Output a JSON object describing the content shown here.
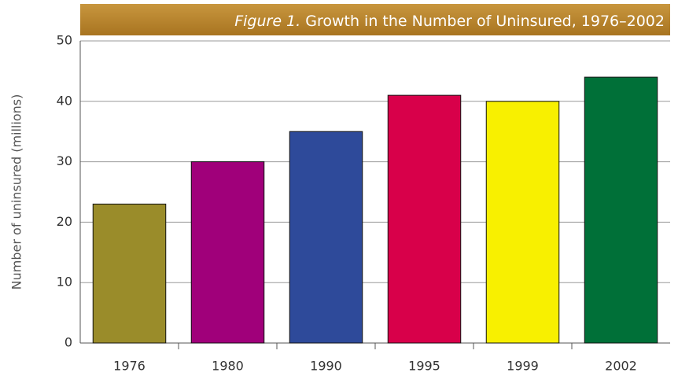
{
  "chart_data": {
    "type": "bar",
    "title_prefix": "Figure 1.",
    "title": "Growth in the Number of Uninsured, 1976–2002",
    "y_axis_label": "Number of uninsured (millions)",
    "categories": [
      "1976",
      "1980",
      "1990",
      "1995",
      "1999",
      "2002"
    ],
    "values": [
      23,
      30,
      35,
      41,
      40,
      44
    ],
    "colors": [
      "#9a8c2a",
      "#a0007a",
      "#2e4a9a",
      "#d8004a",
      "#f8f000",
      "#007038"
    ],
    "ylim": [
      0,
      50
    ],
    "yticks": [
      0,
      10,
      20,
      30,
      40,
      50
    ],
    "grid": true
  }
}
